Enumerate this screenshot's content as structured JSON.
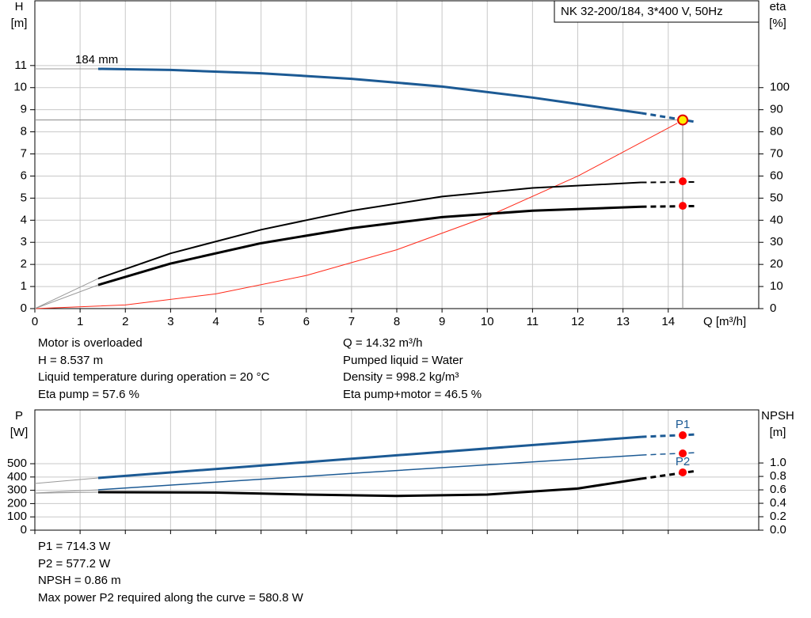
{
  "chart_data": [
    {
      "type": "line",
      "title": "NK 32-200/184, 3*400 V, 50Hz",
      "y_label": "H",
      "y_unit": "[m]",
      "y2_label": "eta",
      "y2_unit": "[%]",
      "x_label": "Q [m³/h]",
      "curve_label": "184 mm",
      "xlim": [
        0,
        16
      ],
      "xticks": [
        0,
        1,
        2,
        3,
        4,
        5,
        6,
        7,
        8,
        9,
        10,
        11,
        12,
        13,
        14
      ],
      "ylim": [
        0,
        13.93
      ],
      "yticks": [
        0,
        1,
        2,
        3,
        4,
        5,
        6,
        7,
        8,
        9,
        10,
        11
      ],
      "y2lim": [
        0,
        139.3
      ],
      "y2ticks": [
        0,
        10,
        20,
        30,
        40,
        50,
        60,
        70,
        80,
        90,
        100
      ],
      "grid": true,
      "series": [
        {
          "color": "#999999",
          "width": 1,
          "x": [
            0,
            1.4
          ],
          "values": [
            10.85,
            10.85
          ]
        },
        {
          "color": "#1c5a94",
          "width": 3,
          "x": [
            1.4,
            3,
            5,
            7,
            9,
            11,
            13.4
          ],
          "values": [
            10.85,
            10.8,
            10.65,
            10.4,
            10.05,
            9.55,
            8.85
          ]
        },
        {
          "color": "#1c5a94",
          "width": 3,
          "dash": true,
          "x": [
            13.4,
            14.6
          ],
          "values": [
            8.85,
            8.45
          ]
        },
        {
          "color": "#ff2a1a",
          "width": 1,
          "x": [
            0,
            2,
            4,
            6,
            8,
            10,
            12,
            14.2
          ],
          "values": [
            0,
            0.167,
            0.666,
            1.499,
            2.664,
            4.163,
            5.995,
            8.39
          ]
        },
        {
          "color": "#999999",
          "width": 1,
          "axis": "y2",
          "x": [
            0,
            1.4
          ],
          "values": [
            0,
            13.6
          ]
        },
        {
          "color": "#000000",
          "width": 2,
          "axis": "y2",
          "x": [
            1.4,
            3,
            5,
            7,
            9,
            11,
            13.4
          ],
          "values": [
            13.6,
            25,
            35.7,
            44.3,
            50.7,
            54.6,
            57.1
          ]
        },
        {
          "color": "#000000",
          "width": 2,
          "dash": true,
          "axis": "y2",
          "x": [
            13.4,
            14.6
          ],
          "values": [
            57.1,
            57.3
          ]
        },
        {
          "color": "#999999",
          "width": 1,
          "axis": "y2",
          "x": [
            0,
            1.4
          ],
          "values": [
            0,
            10.7
          ]
        },
        {
          "color": "#000000",
          "width": 3,
          "axis": "y2",
          "x": [
            1.4,
            3,
            5,
            7,
            9,
            11,
            13.4
          ],
          "values": [
            10.7,
            20.4,
            29.6,
            36.4,
            41.4,
            44.3,
            46.1
          ]
        },
        {
          "color": "#000000",
          "width": 3,
          "dash": true,
          "axis": "y2",
          "x": [
            13.4,
            14.6
          ],
          "values": [
            46.1,
            46.4
          ]
        }
      ],
      "points": [
        {
          "x": 14.32,
          "y": 8.537,
          "color": "#ffee00",
          "guide": true
        },
        {
          "x": 14.32,
          "y": 57.6,
          "axis": "y2",
          "color": "#ff0000"
        },
        {
          "x": 14.32,
          "y": 46.5,
          "axis": "y2",
          "color": "#ff0000"
        }
      ]
    },
    {
      "type": "line",
      "y_label": "P",
      "y_unit": "[W]",
      "y2_label": "NPSH",
      "y2_unit": "[m]",
      "xlim": [
        0,
        16
      ],
      "xticks": [
        0,
        1,
        2,
        3,
        4,
        5,
        6,
        7,
        8,
        9,
        10,
        11,
        12,
        13,
        14
      ],
      "ylim": [
        0,
        905
      ],
      "yticks": [
        0,
        100,
        200,
        300,
        400,
        500
      ],
      "y2lim": [
        0,
        1.79
      ],
      "y2ticks": [
        {
          "value": 0,
          "label": "0.0"
        },
        0.2,
        0.4,
        0.6,
        0.8,
        {
          "value": 1,
          "label": "1.0"
        }
      ],
      "grid": true,
      "series": [
        {
          "color": "#999999",
          "width": 1,
          "x": [
            0,
            1.4
          ],
          "values": [
            351,
            393
          ]
        },
        {
          "color": "#1c5a94",
          "width": 3,
          "x": [
            1.4,
            7.4,
            13.4
          ],
          "values": [
            393,
            548,
            702
          ]
        },
        {
          "color": "#1c5a94",
          "width": 3,
          "dash": true,
          "x": [
            13.4,
            14.6
          ],
          "values": [
            702,
            720
          ]
        },
        {
          "color": "#999999",
          "width": 1,
          "x": [
            0,
            1.4
          ],
          "values": [
            280,
            304
          ]
        },
        {
          "color": "#1c5a94",
          "width": 1.5,
          "x": [
            1.4,
            7.4,
            13.4
          ],
          "values": [
            304,
            436,
            565
          ]
        },
        {
          "color": "#1c5a94",
          "width": 1.5,
          "dash": true,
          "x": [
            13.4,
            14.6
          ],
          "values": [
            565,
            583
          ]
        },
        {
          "color": "#999999",
          "width": 1,
          "axis": "y2",
          "x": [
            0,
            1.4
          ],
          "values": [
            0.55,
            0.565
          ]
        },
        {
          "color": "#000000",
          "width": 3,
          "axis": "y2",
          "x": [
            1.4,
            4,
            6,
            8,
            10,
            12,
            13.4
          ],
          "values": [
            0.565,
            0.56,
            0.53,
            0.51,
            0.53,
            0.62,
            0.765
          ]
        },
        {
          "color": "#000000",
          "width": 3,
          "dash": true,
          "axis": "y2",
          "x": [
            13.4,
            14.6
          ],
          "values": [
            0.765,
            0.88
          ]
        }
      ],
      "points": [
        {
          "x": 14.32,
          "y": 714.3,
          "color": "#ff0000",
          "label": "P1"
        },
        {
          "x": 14.32,
          "y": 577.2,
          "color": "#ff0000"
        },
        {
          "x": 14.32,
          "y": 0.86,
          "axis": "y2",
          "color": "#ff0000",
          "label": "P2"
        }
      ]
    }
  ],
  "info": {
    "top_left": [
      "Motor is overloaded",
      "H = 8.537 m",
      "Liquid temperature during operation = 20 °C",
      "Eta pump = 57.6 %"
    ],
    "top_right": [
      "Q = 14.32 m³/h",
      "Pumped liquid = Water",
      "Density = 998.2 kg/m³",
      "Eta pump+motor = 46.5 %"
    ],
    "bottom": [
      "P1 = 714.3 W",
      "P2 = 577.2 W",
      "NPSH = 0.86 m",
      "Max power P2 required along the curve = 580.8 W"
    ]
  }
}
